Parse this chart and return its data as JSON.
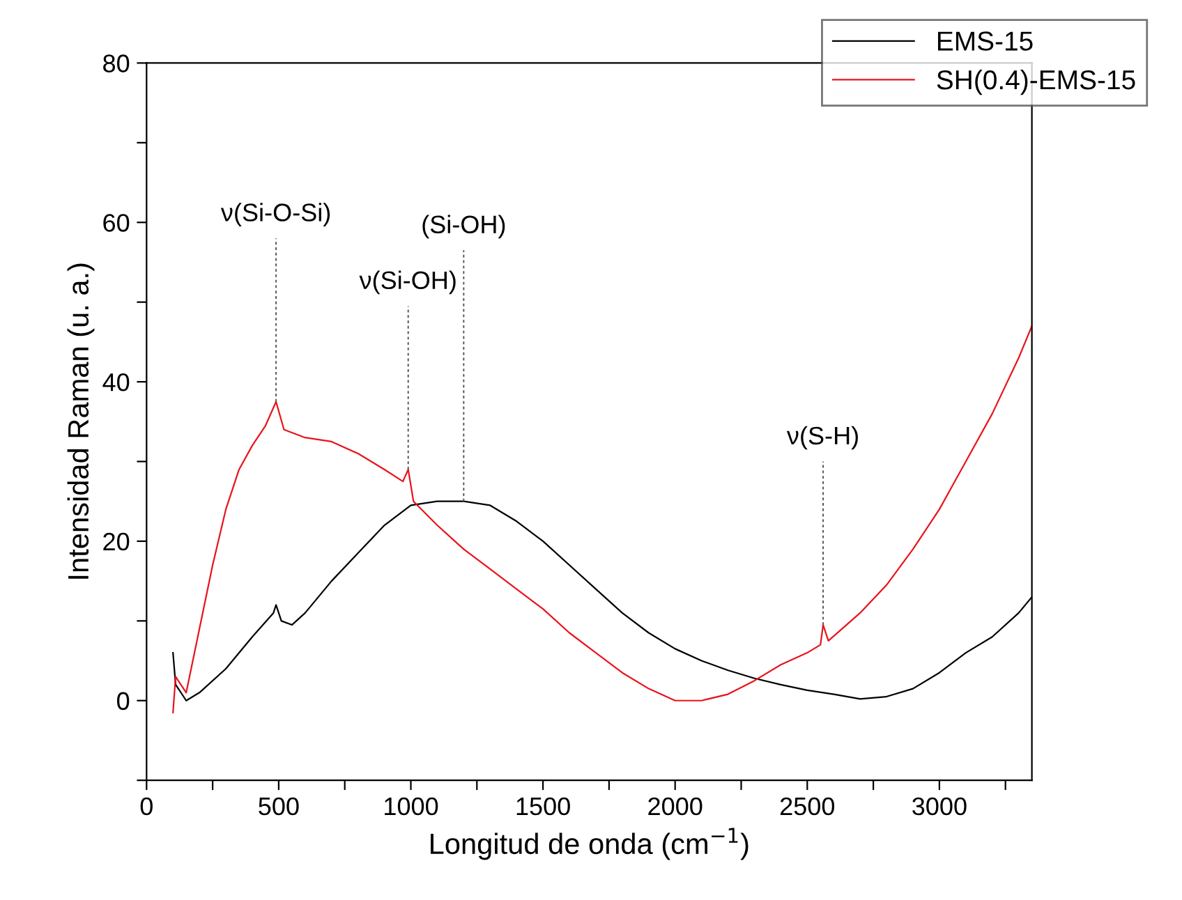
{
  "chart_data": {
    "type": "line",
    "xlabel": "Longitud de onda (cm$^{−1}$)",
    "ylabel": "Intensidad Raman (u. a.)",
    "xlim": [
      0,
      3350
    ],
    "ylim": [
      -10,
      80
    ],
    "xticks": [
      0,
      {
        "value": 250,
        "label": null
      },
      500,
      {
        "value": 750,
        "label": null
      },
      1000,
      {
        "value": 1250,
        "label": null
      },
      1500,
      {
        "value": 1750,
        "label": null
      },
      2000,
      {
        "value": 2250,
        "label": null
      },
      2500,
      {
        "value": 2750,
        "label": null
      },
      3000,
      {
        "value": 3250,
        "label": null
      }
    ],
    "yticks": [
      {
        "value": -10,
        "label": null
      },
      0,
      {
        "value": 10,
        "label": null
      },
      20,
      {
        "value": 30,
        "label": null
      },
      40,
      {
        "value": 50,
        "label": null
      },
      60,
      {
        "value": 70,
        "label": null
      },
      80
    ],
    "grid": false,
    "legend": "top right",
    "line_style": "solid",
    "marker": "none",
    "series": [
      {
        "name": "EMS-15",
        "color": "#000000",
        "x": [
          100,
          110,
          150,
          200,
          300,
          400,
          480,
          490,
          510,
          550,
          600,
          700,
          800,
          900,
          1000,
          1100,
          1200,
          1300,
          1400,
          1500,
          1600,
          1700,
          1800,
          1900,
          2000,
          2100,
          2200,
          2300,
          2400,
          2500,
          2600,
          2700,
          2800,
          2900,
          3000,
          3100,
          3200,
          3300,
          3350
        ],
        "values": [
          6,
          2,
          0,
          1,
          4,
          8,
          11,
          12,
          10,
          9.5,
          11,
          15,
          18.5,
          22,
          24.5,
          25,
          25,
          24.5,
          22.5,
          20,
          17,
          14,
          11,
          8.5,
          6.5,
          5,
          3.8,
          2.8,
          2,
          1.3,
          0.8,
          0.2,
          0.5,
          1.5,
          3.5,
          6,
          8,
          11,
          13
        ]
      },
      {
        "name": "SH(0.4)-EMS-15",
        "color": "#e8141c",
        "x": [
          100,
          110,
          150,
          200,
          250,
          300,
          350,
          400,
          450,
          490,
          520,
          600,
          700,
          800,
          900,
          970,
          990,
          1010,
          1100,
          1200,
          1300,
          1400,
          1500,
          1600,
          1700,
          1800,
          1900,
          2000,
          2100,
          2200,
          2300,
          2400,
          2500,
          2550,
          2560,
          2580,
          2700,
          2800,
          2900,
          3000,
          3050,
          3100,
          3200,
          3300,
          3350
        ],
        "values": [
          -1.5,
          3,
          1,
          9,
          17,
          24,
          29,
          32,
          34.5,
          37.5,
          34,
          33,
          32.5,
          31,
          29,
          27.5,
          29,
          25,
          22,
          19,
          16.5,
          14,
          11.5,
          8.5,
          6,
          3.5,
          1.5,
          0,
          0,
          0.8,
          2.5,
          4.5,
          6,
          7,
          9.5,
          7.5,
          11,
          14.5,
          19,
          24,
          27,
          30,
          36,
          43,
          47
        ]
      }
    ],
    "annotations": [
      {
        "text": "ν(Si-O-Si)",
        "x": 490,
        "y": 37.5
      },
      {
        "text": "ν(Si-OH)",
        "x": 990,
        "y": 29
      },
      {
        "text": "(Si-OH)",
        "x": 1200,
        "y": 25
      },
      {
        "text": "ν(S-H)",
        "x": 2560,
        "y": 9.5
      }
    ]
  }
}
